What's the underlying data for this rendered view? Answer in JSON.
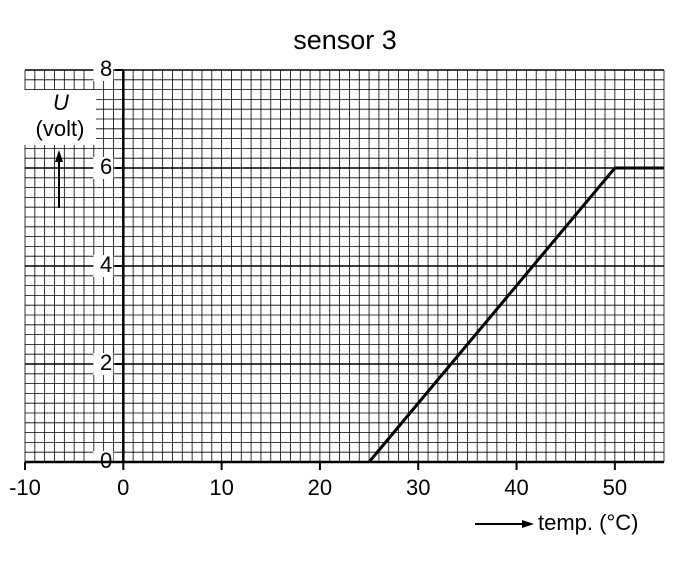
{
  "chart_data": {
    "type": "line",
    "title": "sensor 3",
    "y_label": "U",
    "y_unit": "(volt)",
    "x_label": "temp. (°C)",
    "x": [
      25,
      50,
      55
    ],
    "series": [
      {
        "name": "sensor 3",
        "color": "#000000",
        "values": [
          0,
          6,
          6
        ]
      }
    ],
    "xlim": [
      -10,
      55
    ],
    "ylim": [
      0,
      8
    ],
    "xticks": [
      -10,
      0,
      10,
      20,
      30,
      40,
      50
    ],
    "yticks": [
      0,
      2,
      4,
      6,
      8
    ],
    "grid": true,
    "minor_grid": {
      "x": 1,
      "y": 0.2
    }
  }
}
